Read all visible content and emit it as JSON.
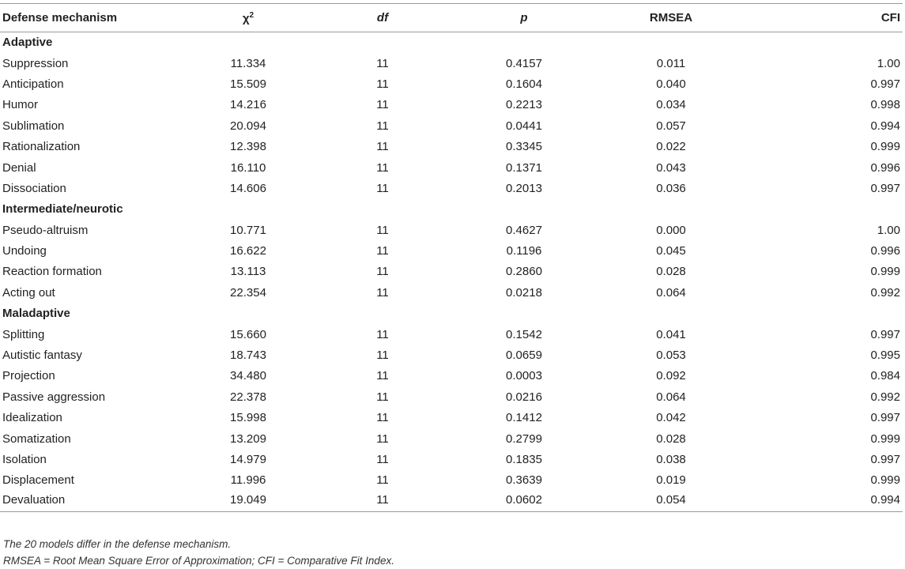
{
  "headers": {
    "mechanism": "Defense mechanism",
    "chi_base": "χ",
    "chi_sup": "2",
    "df": "df",
    "p": "p",
    "rmsea": "RMSEA",
    "cfi": "CFI"
  },
  "groups": [
    {
      "name": "Adaptive",
      "rows": [
        {
          "mechanism": "Suppression",
          "chi2": "11.334",
          "df": "11",
          "p": "0.4157",
          "rmsea": "0.011",
          "cfi": "1.00"
        },
        {
          "mechanism": "Anticipation",
          "chi2": "15.509",
          "df": "11",
          "p": "0.1604",
          "rmsea": "0.040",
          "cfi": "0.997"
        },
        {
          "mechanism": "Humor",
          "chi2": "14.216",
          "df": "11",
          "p": "0.2213",
          "rmsea": "0.034",
          "cfi": "0.998"
        },
        {
          "mechanism": "Sublimation",
          "chi2": "20.094",
          "df": "11",
          "p": "0.0441",
          "rmsea": "0.057",
          "cfi": "0.994"
        },
        {
          "mechanism": "Rationalization",
          "chi2": "12.398",
          "df": "11",
          "p": "0.3345",
          "rmsea": "0.022",
          "cfi": "0.999"
        },
        {
          "mechanism": "Denial",
          "chi2": "16.110",
          "df": "11",
          "p": "0.1371",
          "rmsea": "0.043",
          "cfi": "0.996"
        },
        {
          "mechanism": "Dissociation",
          "chi2": "14.606",
          "df": "11",
          "p": "0.2013",
          "rmsea": "0.036",
          "cfi": "0.997"
        }
      ]
    },
    {
      "name": "Intermediate/neurotic",
      "rows": [
        {
          "mechanism": "Pseudo-altruism",
          "chi2": "10.771",
          "df": "11",
          "p": "0.4627",
          "rmsea": "0.000",
          "cfi": "1.00"
        },
        {
          "mechanism": "Undoing",
          "chi2": "16.622",
          "df": "11",
          "p": "0.1196",
          "rmsea": "0.045",
          "cfi": "0.996"
        },
        {
          "mechanism": "Reaction formation",
          "chi2": "13.113",
          "df": "11",
          "p": "0.2860",
          "rmsea": "0.028",
          "cfi": "0.999"
        },
        {
          "mechanism": "Acting out",
          "chi2": "22.354",
          "df": "11",
          "p": "0.0218",
          "rmsea": "0.064",
          "cfi": "0.992"
        }
      ]
    },
    {
      "name": "Maladaptive",
      "rows": [
        {
          "mechanism": "Splitting",
          "chi2": "15.660",
          "df": "11",
          "p": "0.1542",
          "rmsea": "0.041",
          "cfi": "0.997"
        },
        {
          "mechanism": "Autistic fantasy",
          "chi2": "18.743",
          "df": "11",
          "p": "0.0659",
          "rmsea": "0.053",
          "cfi": "0.995"
        },
        {
          "mechanism": "Projection",
          "chi2": "34.480",
          "df": "11",
          "p": "0.0003",
          "rmsea": "0.092",
          "cfi": "0.984"
        },
        {
          "mechanism": "Passive aggression",
          "chi2": "22.378",
          "df": "11",
          "p": "0.0216",
          "rmsea": "0.064",
          "cfi": "0.992"
        },
        {
          "mechanism": "Idealization",
          "chi2": "15.998",
          "df": "11",
          "p": "0.1412",
          "rmsea": "0.042",
          "cfi": "0.997"
        },
        {
          "mechanism": "Somatization",
          "chi2": "13.209",
          "df": "11",
          "p": "0.2799",
          "rmsea": "0.028",
          "cfi": "0.999"
        },
        {
          "mechanism": "Isolation",
          "chi2": "14.979",
          "df": "11",
          "p": "0.1835",
          "rmsea": "0.038",
          "cfi": "0.997"
        },
        {
          "mechanism": "Displacement",
          "chi2": "11.996",
          "df": "11",
          "p": "0.3639",
          "rmsea": "0.019",
          "cfi": "0.999"
        },
        {
          "mechanism": "Devaluation",
          "chi2": "19.049",
          "df": "11",
          "p": "0.0602",
          "rmsea": "0.054",
          "cfi": "0.994"
        }
      ]
    }
  ],
  "notes": [
    "The 20 models differ in the defense mechanism.",
    "RMSEA = Root Mean Square Error of Approximation; CFI = Comparative Fit Index."
  ]
}
